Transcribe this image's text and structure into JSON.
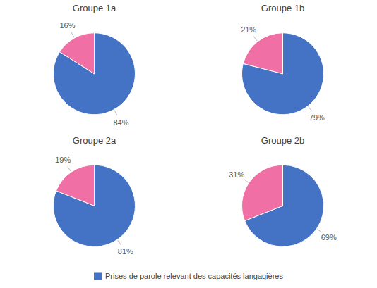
{
  "chart_data": [
    {
      "type": "pie",
      "title": "Groupe 1a",
      "categories": [
        "Prises de parole relevant des capacités langagières",
        null
      ],
      "values": [
        84,
        16
      ],
      "value_labels": [
        "84%",
        "16%"
      ],
      "colors": [
        "#4472C4",
        "#F06FA4"
      ],
      "data_labels": true,
      "legend": "bottom"
    },
    {
      "type": "pie",
      "title": "Groupe 1b",
      "values": [
        79,
        21
      ],
      "value_labels": [
        "79%",
        "21%"
      ],
      "colors": [
        "#4472C4",
        "#F06FA4"
      ],
      "data_labels": true
    },
    {
      "type": "pie",
      "title": "Groupe 2a",
      "values": [
        81,
        19
      ],
      "value_labels": [
        "81%",
        "19%"
      ],
      "colors": [
        "#4472C4",
        "#F06FA4"
      ],
      "data_labels": true
    },
    {
      "type": "pie",
      "title": "Groupe 2b",
      "values": [
        69,
        31
      ],
      "value_labels": [
        "69%",
        "31%"
      ],
      "colors": [
        "#4472C4",
        "#F06FA4"
      ],
      "data_labels": true
    }
  ]
}
